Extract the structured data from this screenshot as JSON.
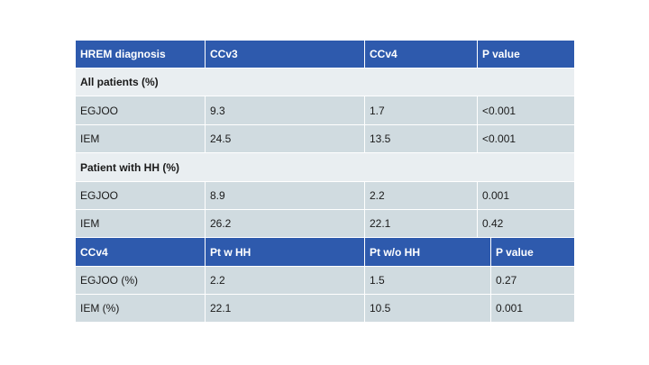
{
  "table1": {
    "headers": [
      "HREM diagnosis",
      "CCv3",
      "CCv4",
      "P value"
    ],
    "section1": "All patients (%)",
    "rows1": [
      [
        "EGJOO",
        "9.3",
        "1.7",
        "<0.001"
      ],
      [
        "IEM",
        "24.5",
        "13.5",
        "<0.001"
      ]
    ],
    "section2": "Patient with HH (%)",
    "rows2": [
      [
        "EGJOO",
        "8.9",
        "2.2",
        "0.001"
      ],
      [
        "IEM",
        "26.2",
        "22.1",
        "0.42"
      ]
    ]
  },
  "table2": {
    "headers": [
      "CCv4",
      "Pt w HH",
      "Pt w/o HH",
      "P value"
    ],
    "rows": [
      [
        "EGJOO (%)",
        "2.2",
        "1.5",
        "0.27"
      ],
      [
        "IEM (%)",
        "22.1",
        "10.5",
        "0.001"
      ]
    ]
  },
  "colors": {
    "header_bg": "#2e5aad",
    "section_bg": "#e9eef1",
    "data_bg": "#d0dbe0"
  }
}
